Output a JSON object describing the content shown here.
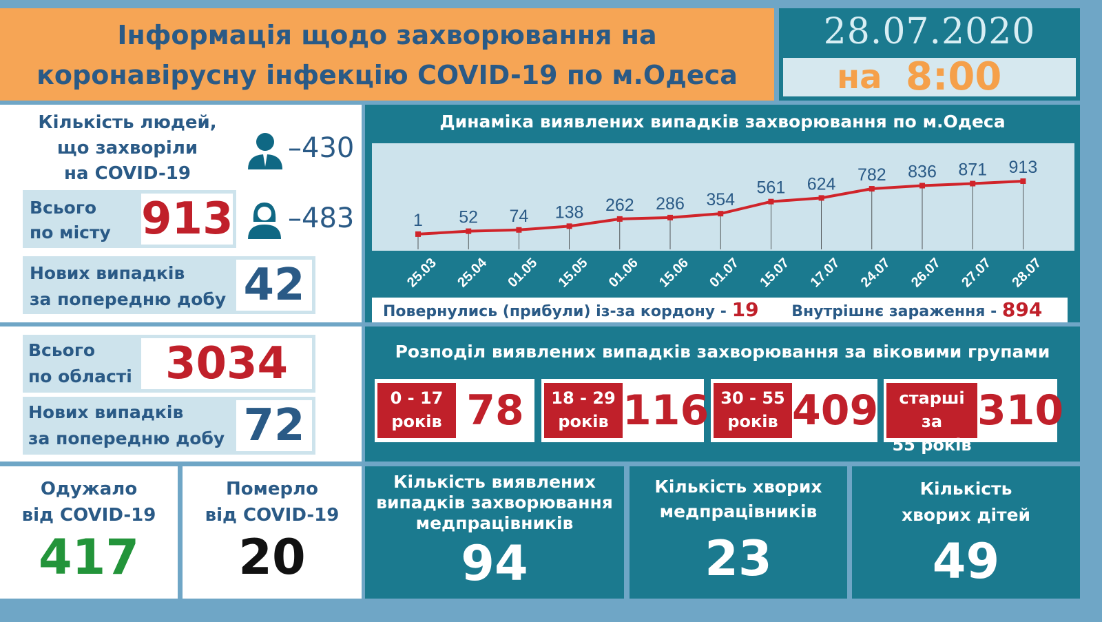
{
  "header": {
    "title_line1": "Інформація щодо захворювання на",
    "title_line2": "коронавірусну інфекцію COVID-19 по м.Одеса",
    "date": "28.07.2020",
    "time_prefix": "на",
    "time": "8:00"
  },
  "city": {
    "heading1": "Кількість людей,",
    "heading2": "що захворіли",
    "heading3": "на COVID-19",
    "men": "–430",
    "women": "–483",
    "total_label1": "Всього",
    "total_label2": "по місту",
    "total": "913",
    "new_label1": "Нових випадків",
    "new_label2": "за попередню добу",
    "new": "42"
  },
  "region": {
    "total_label1": "Всього",
    "total_label2": "по області",
    "total": "3034",
    "new_label1": "Нових випадків",
    "new_label2": "за попередню добу",
    "new": "72"
  },
  "recovered": {
    "label1": "Одужало",
    "label2": "від COVID-19",
    "value": "417"
  },
  "died": {
    "label1": "Померло",
    "label2": "від COVID-19",
    "value": "20"
  },
  "medics_cases": {
    "label1": "Кількість виявлених",
    "label2": "випадків захворювання",
    "label3": "медпрацівників",
    "value": "94"
  },
  "medics_sick": {
    "label1": "Кількість хворих",
    "label2": "медпрацівників",
    "value": "23"
  },
  "children": {
    "label1": "Кількість",
    "label2": "хворих дітей",
    "value": "49"
  },
  "sources": {
    "imported_label": "Повернулись (прибули) із-за кордону -",
    "imported": "19",
    "local_label": "Внутрішнє зараження  -",
    "local": "894"
  },
  "ages": {
    "title": "Розподіл виявлених випадків захворювання за віковими групами",
    "groups": [
      {
        "l1": "0 - 17",
        "l2": "років",
        "value": "78"
      },
      {
        "l1": "18 - 29",
        "l2": "років",
        "value": "116"
      },
      {
        "l1": "30 - 55",
        "l2": "років",
        "value": "409"
      },
      {
        "l1": "старші за",
        "l2": "55 років",
        "value": "310"
      }
    ]
  },
  "chart_data": {
    "type": "line",
    "title": "Динаміка виявлених випадків захворювання по м.Одеса",
    "categories": [
      "25.03",
      "25.04",
      "01.05",
      "15.05",
      "01.06",
      "15.06",
      "01.07",
      "15.07",
      "17.07",
      "24.07",
      "26.07",
      "27.07",
      "28.07"
    ],
    "values": [
      1,
      52,
      74,
      138,
      262,
      286,
      354,
      561,
      624,
      782,
      836,
      871,
      913
    ],
    "line_color": "#d0242a",
    "ylim": [
      0,
      913
    ]
  }
}
